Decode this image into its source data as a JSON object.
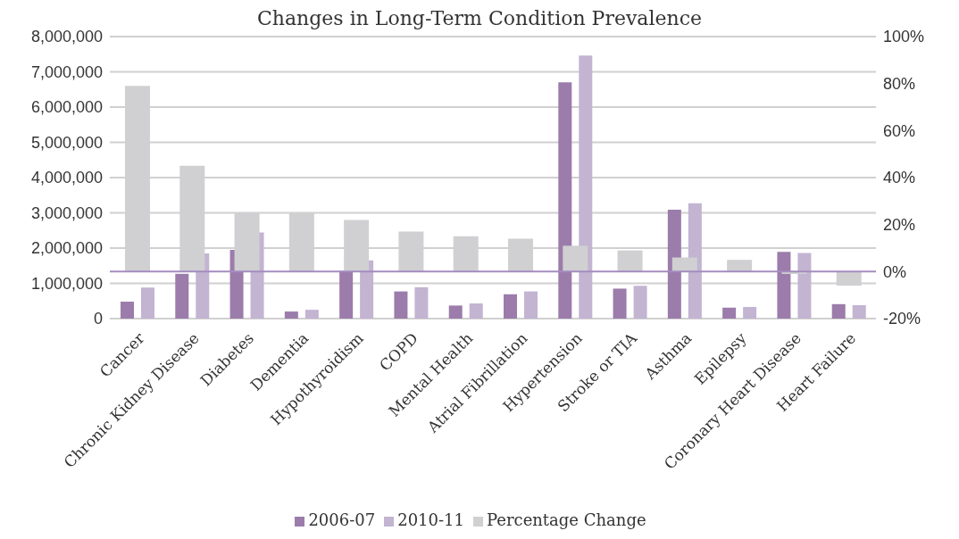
{
  "chart_data": {
    "type": "bar",
    "title": "Changes in Long-Term Condition Prevalence",
    "categories": [
      "Cancer",
      "Chronic Kidney Disease",
      "Diabetes",
      "Dementia",
      "Hypothyroidism",
      "COPD",
      "Mental Health",
      "Atrial Fibrillation",
      "Hypertension",
      "Stroke or TIA",
      "Asthma",
      "Epilepsy",
      "Coronary Heart Disease",
      "Heart Failure"
    ],
    "series": [
      {
        "name": "2006-07",
        "color": "#9b7cab",
        "values": [
          480000,
          1270000,
          1950000,
          200000,
          1350000,
          770000,
          370000,
          690000,
          6700000,
          850000,
          3090000,
          310000,
          1890000,
          410000
        ]
      },
      {
        "name": "2010-11",
        "color": "#c3b4d2",
        "values": [
          880000,
          1850000,
          2440000,
          250000,
          1650000,
          890000,
          430000,
          770000,
          7460000,
          930000,
          3270000,
          330000,
          1860000,
          380000
        ]
      },
      {
        "name": "Percentage Change",
        "color": "#d0d0d2",
        "axis": "y2",
        "values": [
          79,
          45,
          25,
          25,
          22,
          17,
          15,
          14,
          11,
          9,
          6,
          5,
          -1,
          -6
        ]
      }
    ],
    "ylim": [
      0,
      8000000
    ],
    "yticks": [
      {
        "value": 0,
        "label": "0"
      },
      {
        "value": 1000000,
        "label": "1,000,000"
      },
      {
        "value": 2000000,
        "label": "2,000,000"
      },
      {
        "value": 3000000,
        "label": "3,000,000"
      },
      {
        "value": 4000000,
        "label": "4,000,000"
      },
      {
        "value": 5000000,
        "label": "5,000,000"
      },
      {
        "value": 6000000,
        "label": "6,000,000"
      },
      {
        "value": 7000000,
        "label": "7,000,000"
      },
      {
        "value": 8000000,
        "label": "8,000,000"
      }
    ],
    "y2lim": [
      -20,
      100
    ],
    "y2ticks": [
      {
        "value": -20,
        "label": "-20%"
      },
      {
        "value": 0,
        "label": "0%"
      },
      {
        "value": 20,
        "label": "20%"
      },
      {
        "value": 40,
        "label": "40%"
      },
      {
        "value": 60,
        "label": "60%"
      },
      {
        "value": 80,
        "label": "80%"
      },
      {
        "value": 100,
        "label": "100%"
      }
    ],
    "ref_lines": [
      {
        "axis": "y2",
        "value": 0,
        "color": "#a58cbf"
      }
    ],
    "grid": "y",
    "legend": "bottom"
  }
}
